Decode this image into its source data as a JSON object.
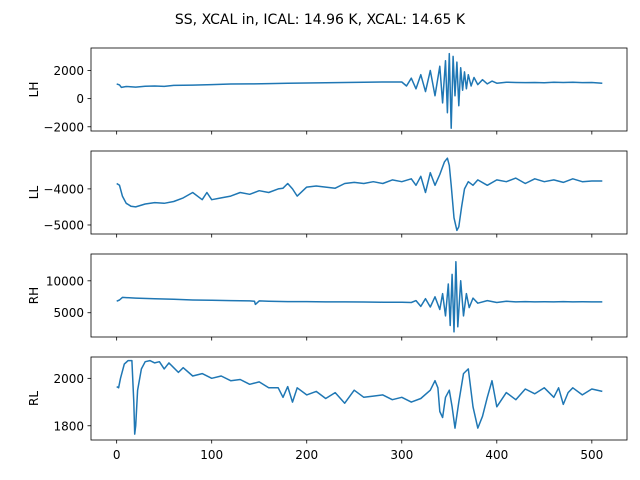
{
  "figure": {
    "title": "SS, XCAL in, ICAL: 14.96 K, XCAL: 14.65 K"
  },
  "chart_data": [
    {
      "type": "line",
      "ylabel": "LH",
      "xlim": [
        -27,
        537
      ],
      "ylim": [
        -2300,
        3600
      ],
      "yticks": [
        -2000,
        0,
        2000
      ],
      "xticks": [],
      "grid": false,
      "color": "#1f77b4",
      "series": [
        {
          "x": [
            0,
            3,
            5,
            10,
            20,
            30,
            40,
            50,
            60,
            80,
            100,
            120,
            140,
            160,
            180,
            200,
            220,
            240,
            260,
            280,
            300,
            305,
            310,
            315,
            320,
            325,
            330,
            335,
            340,
            343,
            346,
            348,
            350,
            352,
            354,
            356,
            358,
            360,
            362,
            364,
            366,
            368,
            370,
            373,
            376,
            380,
            385,
            390,
            395,
            400,
            410,
            420,
            430,
            440,
            450,
            460,
            470,
            480,
            490,
            500,
            511
          ],
          "y": [
            1050,
            980,
            800,
            860,
            820,
            880,
            900,
            870,
            940,
            960,
            1000,
            1040,
            1050,
            1070,
            1100,
            1110,
            1130,
            1150,
            1160,
            1180,
            1180,
            900,
            1450,
            700,
            1700,
            500,
            2000,
            200,
            2300,
            -300,
            2700,
            -1000,
            3200,
            -2100,
            3000,
            200,
            2600,
            -500,
            2200,
            600,
            1900,
            700,
            1700,
            900,
            1500,
            1000,
            1350,
            1050,
            1250,
            1100,
            1170,
            1150,
            1140,
            1150,
            1130,
            1160,
            1150,
            1170,
            1140,
            1150,
            1100
          ]
        }
      ]
    },
    {
      "type": "line",
      "ylabel": "LL",
      "xlim": [
        -27,
        537
      ],
      "ylim": [
        -5250,
        -2950
      ],
      "yticks": [
        -5000,
        -4000
      ],
      "xticks": [],
      "grid": false,
      "color": "#1f77b4",
      "series": [
        {
          "x": [
            0,
            3,
            6,
            10,
            15,
            20,
            30,
            40,
            50,
            60,
            70,
            80,
            90,
            95,
            100,
            110,
            120,
            130,
            140,
            150,
            160,
            170,
            175,
            180,
            185,
            190,
            200,
            210,
            220,
            230,
            240,
            250,
            260,
            270,
            280,
            290,
            300,
            310,
            315,
            320,
            325,
            330,
            335,
            340,
            345,
            348,
            350,
            352,
            355,
            358,
            360,
            363,
            366,
            370,
            375,
            380,
            390,
            400,
            410,
            420,
            430,
            440,
            450,
            460,
            470,
            480,
            490,
            500,
            511
          ],
          "y": [
            -3850,
            -3900,
            -4200,
            -4400,
            -4480,
            -4500,
            -4420,
            -4380,
            -4400,
            -4350,
            -4250,
            -4100,
            -4300,
            -4100,
            -4300,
            -4250,
            -4200,
            -4100,
            -4150,
            -4050,
            -4100,
            -4000,
            -3980,
            -3850,
            -4000,
            -4200,
            -3950,
            -3920,
            -3950,
            -3980,
            -3850,
            -3820,
            -3850,
            -3800,
            -3850,
            -3750,
            -3800,
            -3720,
            -3900,
            -3650,
            -4100,
            -3550,
            -3900,
            -3600,
            -3250,
            -3150,
            -3350,
            -3900,
            -4800,
            -5150,
            -5050,
            -4500,
            -4000,
            -3800,
            -3900,
            -3750,
            -3900,
            -3750,
            -3800,
            -3700,
            -3850,
            -3720,
            -3800,
            -3750,
            -3820,
            -3720,
            -3800,
            -3780,
            -3780
          ]
        }
      ]
    },
    {
      "type": "line",
      "ylabel": "RH",
      "xlim": [
        -27,
        537
      ],
      "ylim": [
        1200,
        14200
      ],
      "yticks": [
        5000,
        10000
      ],
      "xticks": [],
      "grid": false,
      "color": "#1f77b4",
      "series": [
        {
          "x": [
            0,
            3,
            6,
            20,
            40,
            60,
            80,
            100,
            120,
            140,
            145,
            146,
            150,
            160,
            180,
            200,
            220,
            240,
            260,
            280,
            300,
            310,
            315,
            320,
            325,
            330,
            335,
            340,
            343,
            346,
            349,
            351,
            353,
            355,
            357,
            359,
            362,
            365,
            368,
            371,
            375,
            380,
            390,
            400,
            410,
            420,
            430,
            440,
            450,
            460,
            470,
            480,
            490,
            500,
            511
          ],
          "y": [
            6800,
            7000,
            7400,
            7300,
            7200,
            7100,
            7000,
            6950,
            6900,
            6850,
            6800,
            6300,
            6850,
            6800,
            6750,
            6750,
            6700,
            6700,
            6680,
            6650,
            6650,
            6600,
            6900,
            6000,
            7200,
            5900,
            7500,
            5500,
            8000,
            4500,
            9500,
            3000,
            11000,
            2000,
            13000,
            2800,
            10000,
            4500,
            8000,
            5800,
            7300,
            6500,
            6900,
            6600,
            6800,
            6700,
            6750,
            6700,
            6720,
            6700,
            6750,
            6700,
            6720,
            6700,
            6700
          ]
        }
      ]
    },
    {
      "type": "line",
      "ylabel": "RL",
      "xlim": [
        -27,
        537
      ],
      "ylim": [
        1740,
        2090
      ],
      "yticks": [
        1800,
        2000
      ],
      "xticks": [
        0,
        100,
        200,
        300,
        400,
        500
      ],
      "grid": false,
      "color": "#1f77b4",
      "series": [
        {
          "x": [
            0,
            2,
            4,
            8,
            12,
            16,
            18,
            19,
            20,
            22,
            26,
            30,
            35,
            40,
            45,
            50,
            55,
            60,
            65,
            70,
            80,
            90,
            100,
            110,
            120,
            130,
            140,
            150,
            160,
            170,
            175,
            180,
            185,
            190,
            200,
            210,
            220,
            230,
            240,
            250,
            260,
            270,
            280,
            290,
            300,
            310,
            320,
            330,
            335,
            338,
            340,
            343,
            346,
            350,
            353,
            356,
            360,
            365,
            370,
            375,
            380,
            385,
            390,
            395,
            400,
            410,
            420,
            430,
            440,
            450,
            460,
            465,
            470,
            475,
            480,
            490,
            500,
            511
          ],
          "y": [
            1965,
            1960,
            2000,
            2060,
            2075,
            2075,
            1900,
            1765,
            1800,
            1950,
            2040,
            2070,
            2075,
            2065,
            2070,
            2040,
            2065,
            2045,
            2025,
            2045,
            2010,
            2020,
            2000,
            2010,
            1990,
            1995,
            1975,
            1985,
            1960,
            1960,
            1920,
            1965,
            1900,
            1960,
            1930,
            1945,
            1915,
            1940,
            1895,
            1950,
            1920,
            1925,
            1930,
            1910,
            1920,
            1900,
            1915,
            1950,
            1990,
            1960,
            1860,
            1835,
            1920,
            1950,
            1880,
            1790,
            1900,
            2020,
            2040,
            1880,
            1790,
            1840,
            1920,
            1990,
            1880,
            1940,
            1910,
            1955,
            1935,
            1960,
            1920,
            1960,
            1890,
            1940,
            1960,
            1930,
            1955,
            1945
          ]
        }
      ]
    }
  ]
}
